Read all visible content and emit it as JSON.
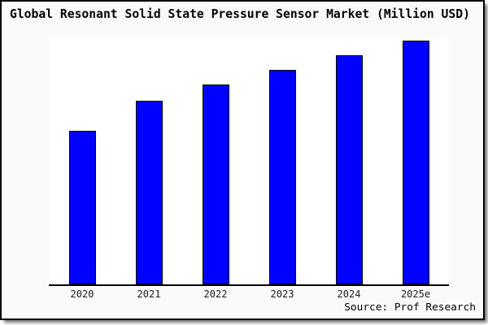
{
  "window": {
    "background": "#fafafa",
    "plot_background": "#ffffff",
    "frame_border_color": "#000000"
  },
  "chart_data": {
    "type": "bar",
    "title": "Global Resonant Solid State Pressure Sensor Market (Million USD)",
    "categories": [
      "2020",
      "2021",
      "2022",
      "2023",
      "2024",
      "2025e"
    ],
    "values": [
      63,
      75.5,
      82,
      88,
      94,
      100
    ],
    "value_note": "no y-axis ticks or data labels shown; values are relative heights indexed to 2025e = 100",
    "xlabel": "",
    "ylabel": "",
    "ylim": [
      0,
      100.7
    ],
    "grid": false,
    "legend": null,
    "bar_color": "#0000fe",
    "bar_border_color": "#000000",
    "axis_color": "#000000"
  },
  "source": {
    "label": "Source: Prof Research"
  }
}
